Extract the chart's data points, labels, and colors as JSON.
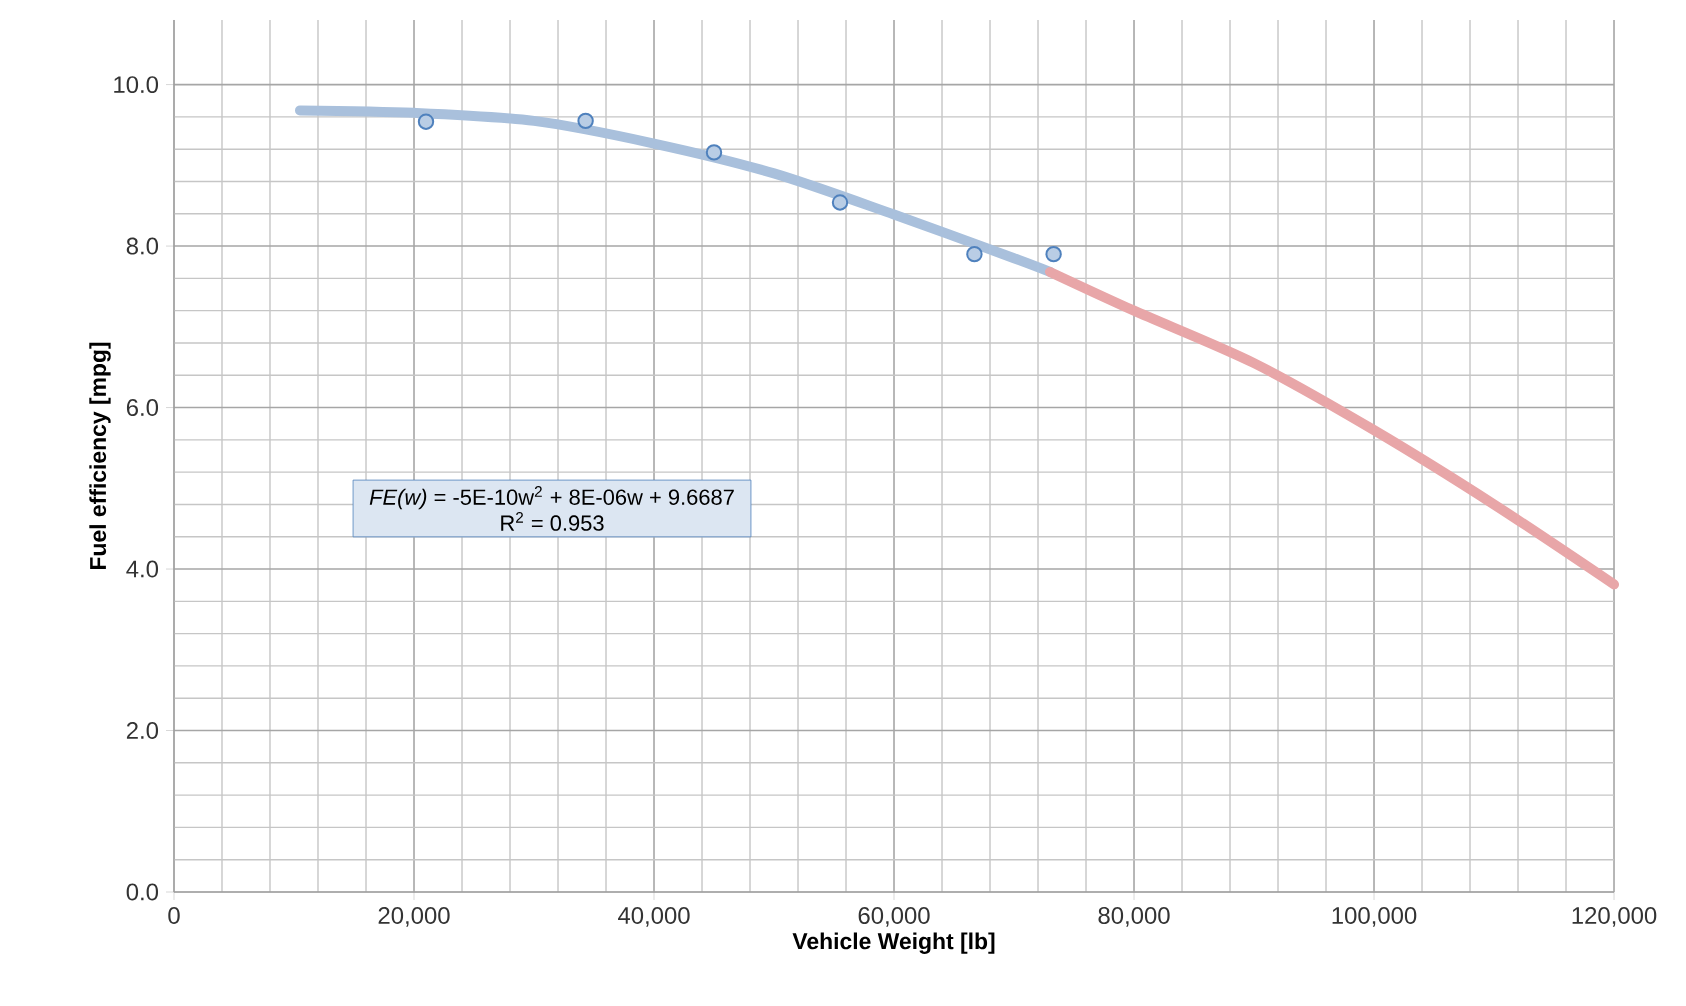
{
  "chart_data": {
    "type": "scatter",
    "xlabel": "Vehicle Weight [lb]",
    "ylabel": "Fuel efficiency [mpg]",
    "xlim": [
      0,
      120000
    ],
    "ylim": [
      0,
      10.8
    ],
    "xticks": [
      {
        "value": 0,
        "label": "0"
      },
      {
        "value": 20000,
        "label": "20,000"
      },
      {
        "value": 40000,
        "label": "40,000"
      },
      {
        "value": 60000,
        "label": "60,000"
      },
      {
        "value": 80000,
        "label": "80,000"
      },
      {
        "value": 100000,
        "label": "100,000"
      },
      {
        "value": 120000,
        "label": "120,000"
      }
    ],
    "yticks": [
      {
        "value": 0,
        "label": "0.0"
      },
      {
        "value": 2,
        "label": "2.0"
      },
      {
        "value": 4,
        "label": "4.0"
      },
      {
        "value": 6,
        "label": "6.0"
      },
      {
        "value": 8,
        "label": "8.0"
      },
      {
        "value": 10,
        "label": "10.0"
      }
    ],
    "grid": true,
    "annotations": [
      "*FE(w)* = -5E-10w$^{2}$ + 8E-06w + 9.6687",
      "R$^{2}$ = 0.953"
    ],
    "series": [
      {
        "type": "line",
        "color": "#a9c0dc",
        "marker": "none",
        "x": [
          10500,
          20000,
          30000,
          40000,
          50000,
          60000,
          70000,
          73000
        ],
        "values": [
          9.68,
          9.65,
          9.55,
          9.27,
          8.9,
          8.39,
          7.85,
          7.68
        ]
      },
      {
        "type": "line",
        "color": "#e8a6a8",
        "marker": "none",
        "x": [
          73000,
          80000,
          90000,
          100000,
          110000,
          120000
        ],
        "values": [
          7.68,
          7.2,
          6.55,
          5.72,
          4.8,
          3.81
        ]
      },
      {
        "color": "#4f81bd",
        "marker": "circle",
        "x": [
          21000,
          34300,
          45000,
          55500,
          66700,
          73300
        ],
        "values": [
          9.54,
          9.55,
          9.16,
          8.54,
          7.9,
          7.9
        ]
      }
    ]
  }
}
